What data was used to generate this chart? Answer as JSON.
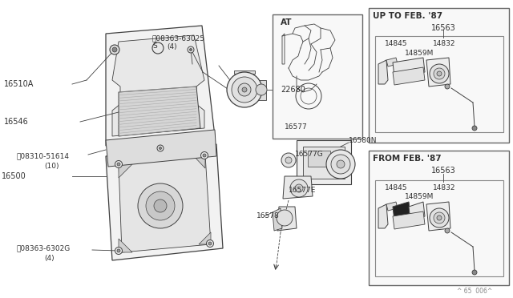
{
  "bg_color": "#ffffff",
  "line_color": "#404040",
  "text_color": "#303030",
  "font_size_small": 6.5,
  "font_size_label": 7,
  "font_size_header": 7.5,
  "part_numbers": {
    "main_assembly": "16500",
    "air_filter_upper": "16510A",
    "air_filter_element": "16546",
    "screw1": "08363-63025",
    "screw1_qty": "(4)",
    "screw2": "08310-51614",
    "screw2_qty": "(10)",
    "screw3": "08363-6302G",
    "screw3_qty": "(4)",
    "air_flow_meter": "22680",
    "duct_g": "16577G",
    "duct_e": "16577E",
    "duct_b": "16578",
    "duct_n": "16580N",
    "at_duct": "16577",
    "part_14845": "14845",
    "part_14859m": "14859M",
    "part_14832": "14832",
    "part_16563_up": "16563",
    "part_16563_fr": "16563"
  },
  "inset_labels": {
    "at": "AT",
    "up_to": "UP TO FEB. '87",
    "from_feb": "FROM FEB. '87"
  },
  "footer": "^ 65  006^",
  "screw_symbol": "S"
}
